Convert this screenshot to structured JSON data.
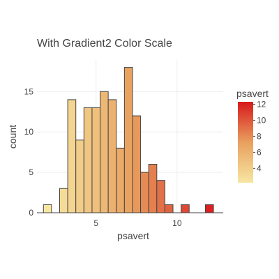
{
  "chart_data": {
    "type": "bar",
    "title": "With Gradient2 Color Scale",
    "xlabel": "psavert",
    "ylabel": "count",
    "bin_width": 0.5,
    "bin_start": 1.75,
    "x": [
      2,
      2.5,
      3,
      3.5,
      4,
      4.5,
      5,
      5.5,
      6,
      6.5,
      7,
      7.5,
      8,
      8.5,
      9,
      9.5,
      10,
      10.5,
      11,
      11.5,
      12
    ],
    "values": [
      1,
      0,
      3,
      14,
      9,
      13,
      13,
      15,
      14,
      8,
      18,
      12,
      5,
      6,
      4,
      1,
      0,
      1,
      0,
      0,
      1
    ],
    "xlim": [
      1.35,
      12.85
    ],
    "ylim": [
      0,
      19
    ],
    "x_ticks": [
      5,
      10
    ],
    "y_ticks": [
      0,
      5,
      10,
      15
    ],
    "grid": true,
    "legend": {
      "title": "psavert",
      "ticks": [
        4,
        6,
        8,
        10,
        12
      ],
      "range": [
        2.2,
        12.3
      ],
      "placement": "right"
    },
    "color_scale": {
      "low": "#f7e6a2",
      "mid": "#e8a05e",
      "high": "#d7191c"
    }
  }
}
